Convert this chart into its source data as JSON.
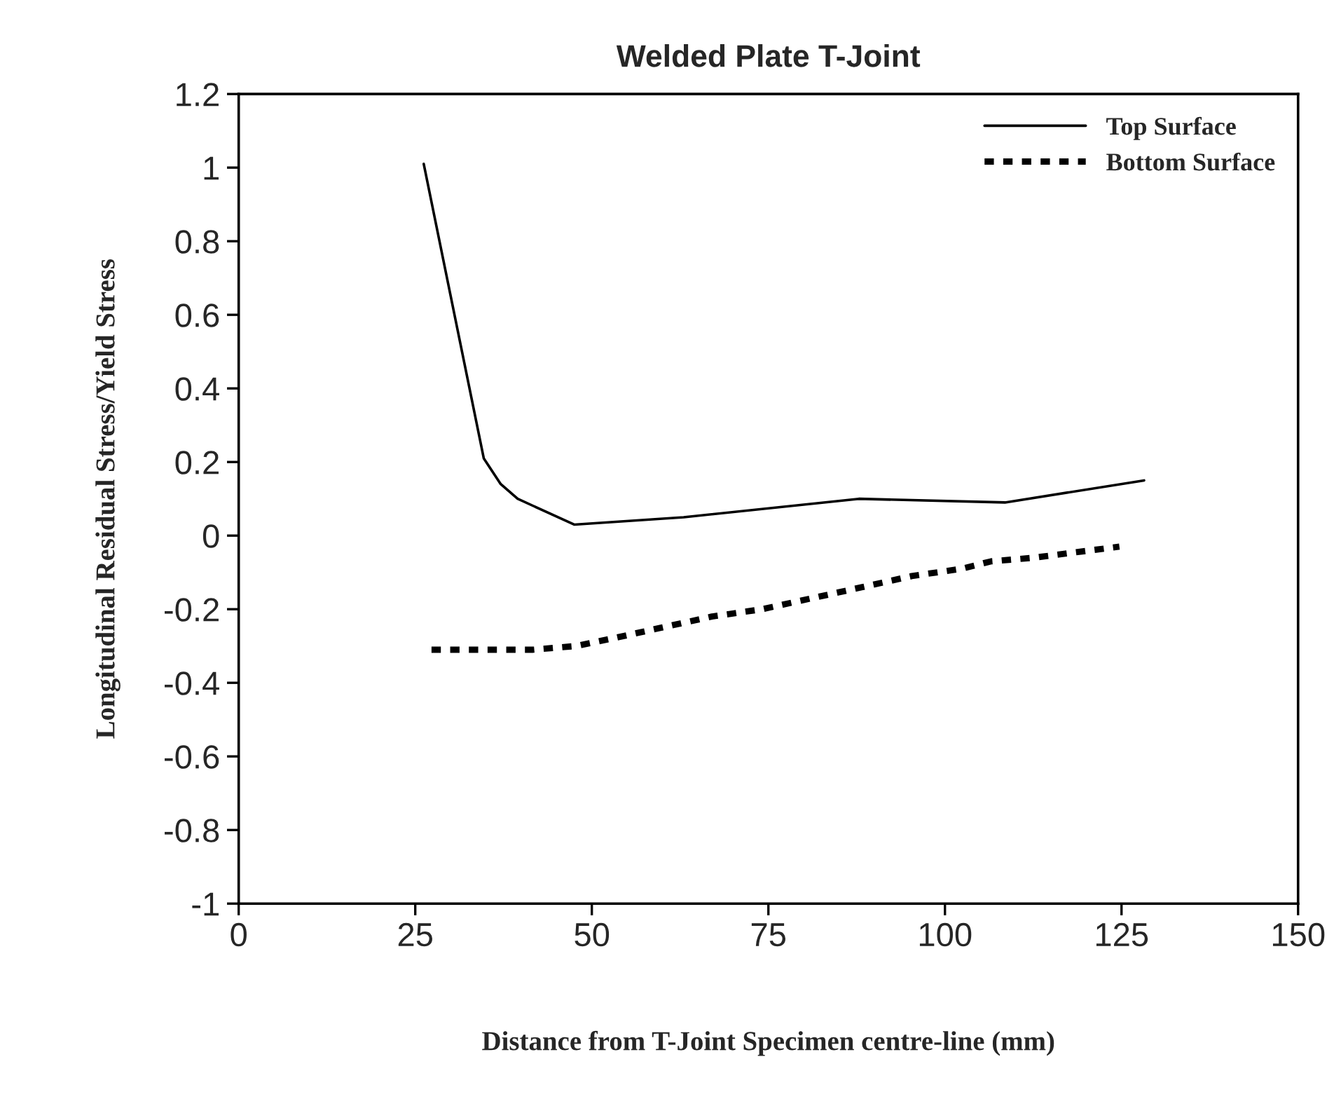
{
  "chart_data": {
    "type": "line",
    "title": "Welded Plate T-Joint",
    "xlabel": "Distance from T-Joint Specimen centre-line (mm)",
    "ylabel": "Longitudinal Residual Stress/Yield Stress",
    "xlim": [
      0,
      150
    ],
    "xticks": [
      0,
      25,
      50,
      75,
      100,
      125,
      150
    ],
    "ylim": [
      -1,
      1.2
    ],
    "yticks": [
      {
        "value": -1,
        "label": "-1"
      },
      {
        "value": -0.8,
        "label": "-0.8"
      },
      {
        "value": -0.6,
        "label": "-0.6"
      },
      {
        "value": -0.4,
        "label": "-0.4"
      },
      {
        "value": -0.2,
        "label": "-0.2"
      },
      0,
      0.2,
      0.4,
      0.6,
      0.8,
      1,
      1.2
    ],
    "grid": false,
    "legend": "top right",
    "marker": "none",
    "series": [
      {
        "name": "Top Surface",
        "color": "#000000",
        "line_style": "solid",
        "x": [
          26.2,
          34.7,
          37.1,
          39.5,
          47.5,
          63,
          87.8,
          108.5,
          128.2
        ],
        "values": [
          1.01,
          0.21,
          0.14,
          0.1,
          0.03,
          0.05,
          0.1,
          0.09,
          0.15
        ]
      },
      {
        "name": "Bottom Surface",
        "color": "#000000",
        "line_style": "dotted",
        "x": [
          27.3,
          41.7,
          47.8,
          52.8,
          59.9,
          67,
          74.1,
          81.2,
          88.3,
          95.3,
          102.4,
          106.5,
          112.6,
          124.7
        ],
        "values": [
          -0.31,
          -0.31,
          -0.3,
          -0.28,
          -0.25,
          -0.22,
          -0.2,
          -0.17,
          -0.14,
          -0.11,
          -0.09,
          -0.07,
          -0.06,
          -0.03
        ]
      }
    ]
  }
}
